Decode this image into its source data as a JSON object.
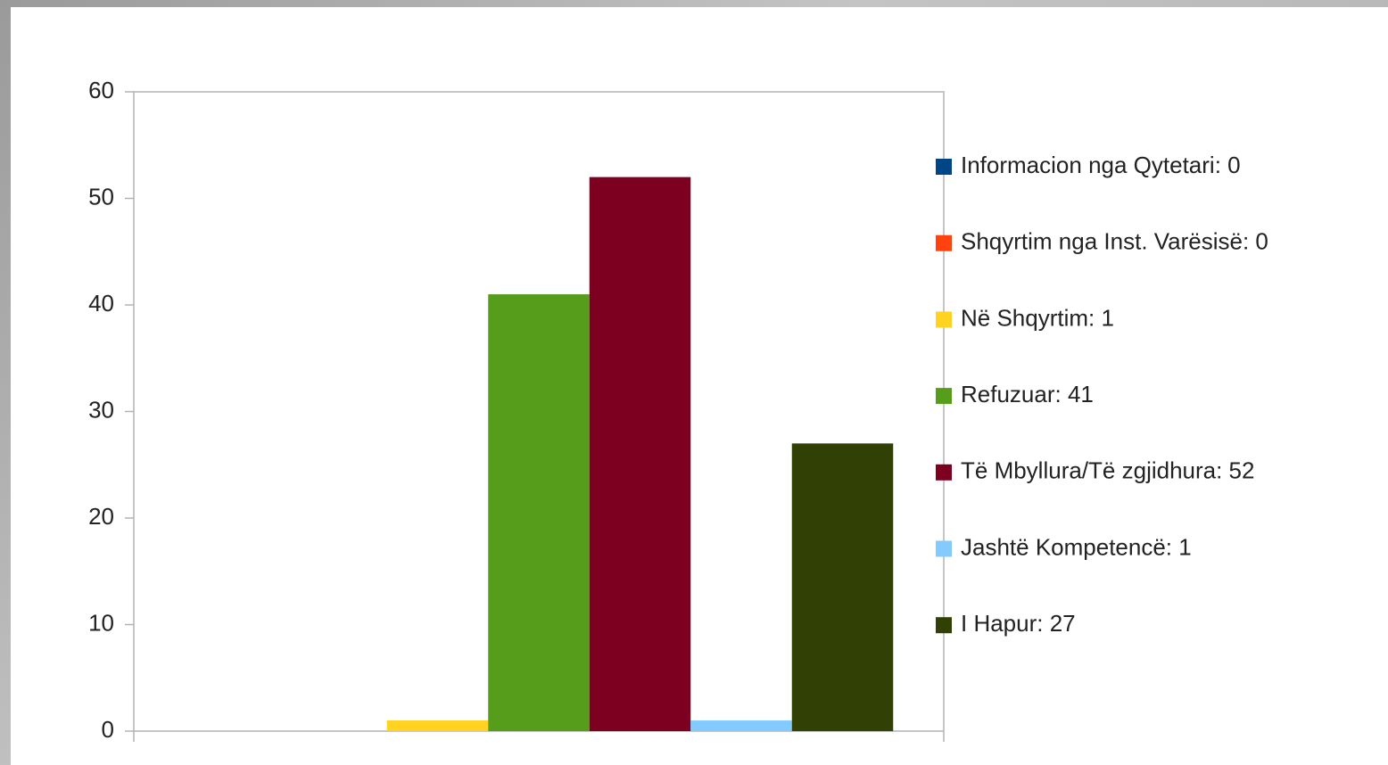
{
  "chart_data": {
    "type": "bar",
    "categories": [
      null
    ],
    "series": [
      {
        "name": "Informacion nga Qytetari: 0",
        "color": "#004586",
        "values": [
          0
        ]
      },
      {
        "name": "Shqyrtim nga Inst. Varësisë: 0",
        "color": "#ff420e",
        "values": [
          0
        ]
      },
      {
        "name": "Në Shqyrtim: 1",
        "color": "#ffd320",
        "values": [
          1
        ]
      },
      {
        "name": "Refuzuar: 41",
        "color": "#579d1c",
        "values": [
          41
        ]
      },
      {
        "name": "Të Mbyllura/Të zgjidhura: 52",
        "color": "#7e0021",
        "values": [
          52
        ]
      },
      {
        "name": "Jashtë Kompetencë: 1",
        "color": "#83caff",
        "values": [
          1
        ]
      },
      {
        "name": "I Hapur: 27",
        "color": "#314004",
        "values": [
          27
        ]
      }
    ],
    "ylim": [
      0,
      60
    ],
    "yticks": [
      0,
      10,
      20,
      30,
      40,
      50,
      60
    ],
    "grid": false,
    "legend": "right"
  }
}
